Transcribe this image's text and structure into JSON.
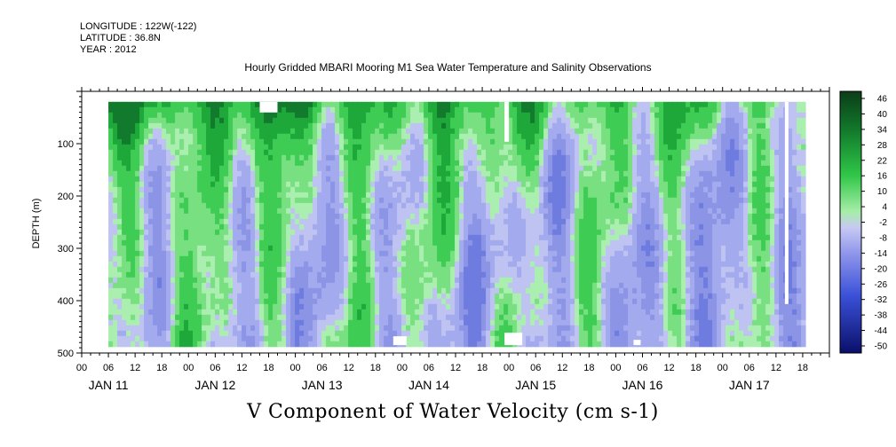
{
  "header": {
    "longitude": "LONGITUDE : 122W(-122)",
    "latitude": "LATITUDE : 36.8N",
    "year": "YEAR : 2012",
    "title": "Hourly Gridded MBARI Mooring M1 Sea Water Temperature and Salinity Observations"
  },
  "chart_data": {
    "type": "heatmap",
    "title": "V Component of Water Velocity (cm s-1)",
    "ylabel": "DEPTH (m)",
    "ylim": [
      500,
      0
    ],
    "yticks": [
      100,
      200,
      300,
      400,
      500
    ],
    "xhour_labels": [
      "00",
      "06",
      "12",
      "18"
    ],
    "days": [
      "JAN 11",
      "JAN 12",
      "JAN 13",
      "JAN 14",
      "JAN 15",
      "JAN 16",
      "JAN 17"
    ],
    "data_range": {
      "start_hour": 6,
      "end_hour": 162,
      "depth_top": 20,
      "depth_bottom": 485
    },
    "colorbar_labels": [
      "46",
      "40",
      "34",
      "28",
      "22",
      "16",
      "10",
      "4",
      "-2",
      "-8",
      "-14",
      "-20",
      "-26",
      "-32",
      "-38",
      "-44",
      "-50"
    ],
    "colors": {
      "strong_pos": "#0b4d1f",
      "mid_pos": "#1fb43a",
      "weak_pos": "#93ec98",
      "weak_neg": "#a9aef0",
      "strong_neg": "#0c1a9a"
    },
    "grid": false
  }
}
